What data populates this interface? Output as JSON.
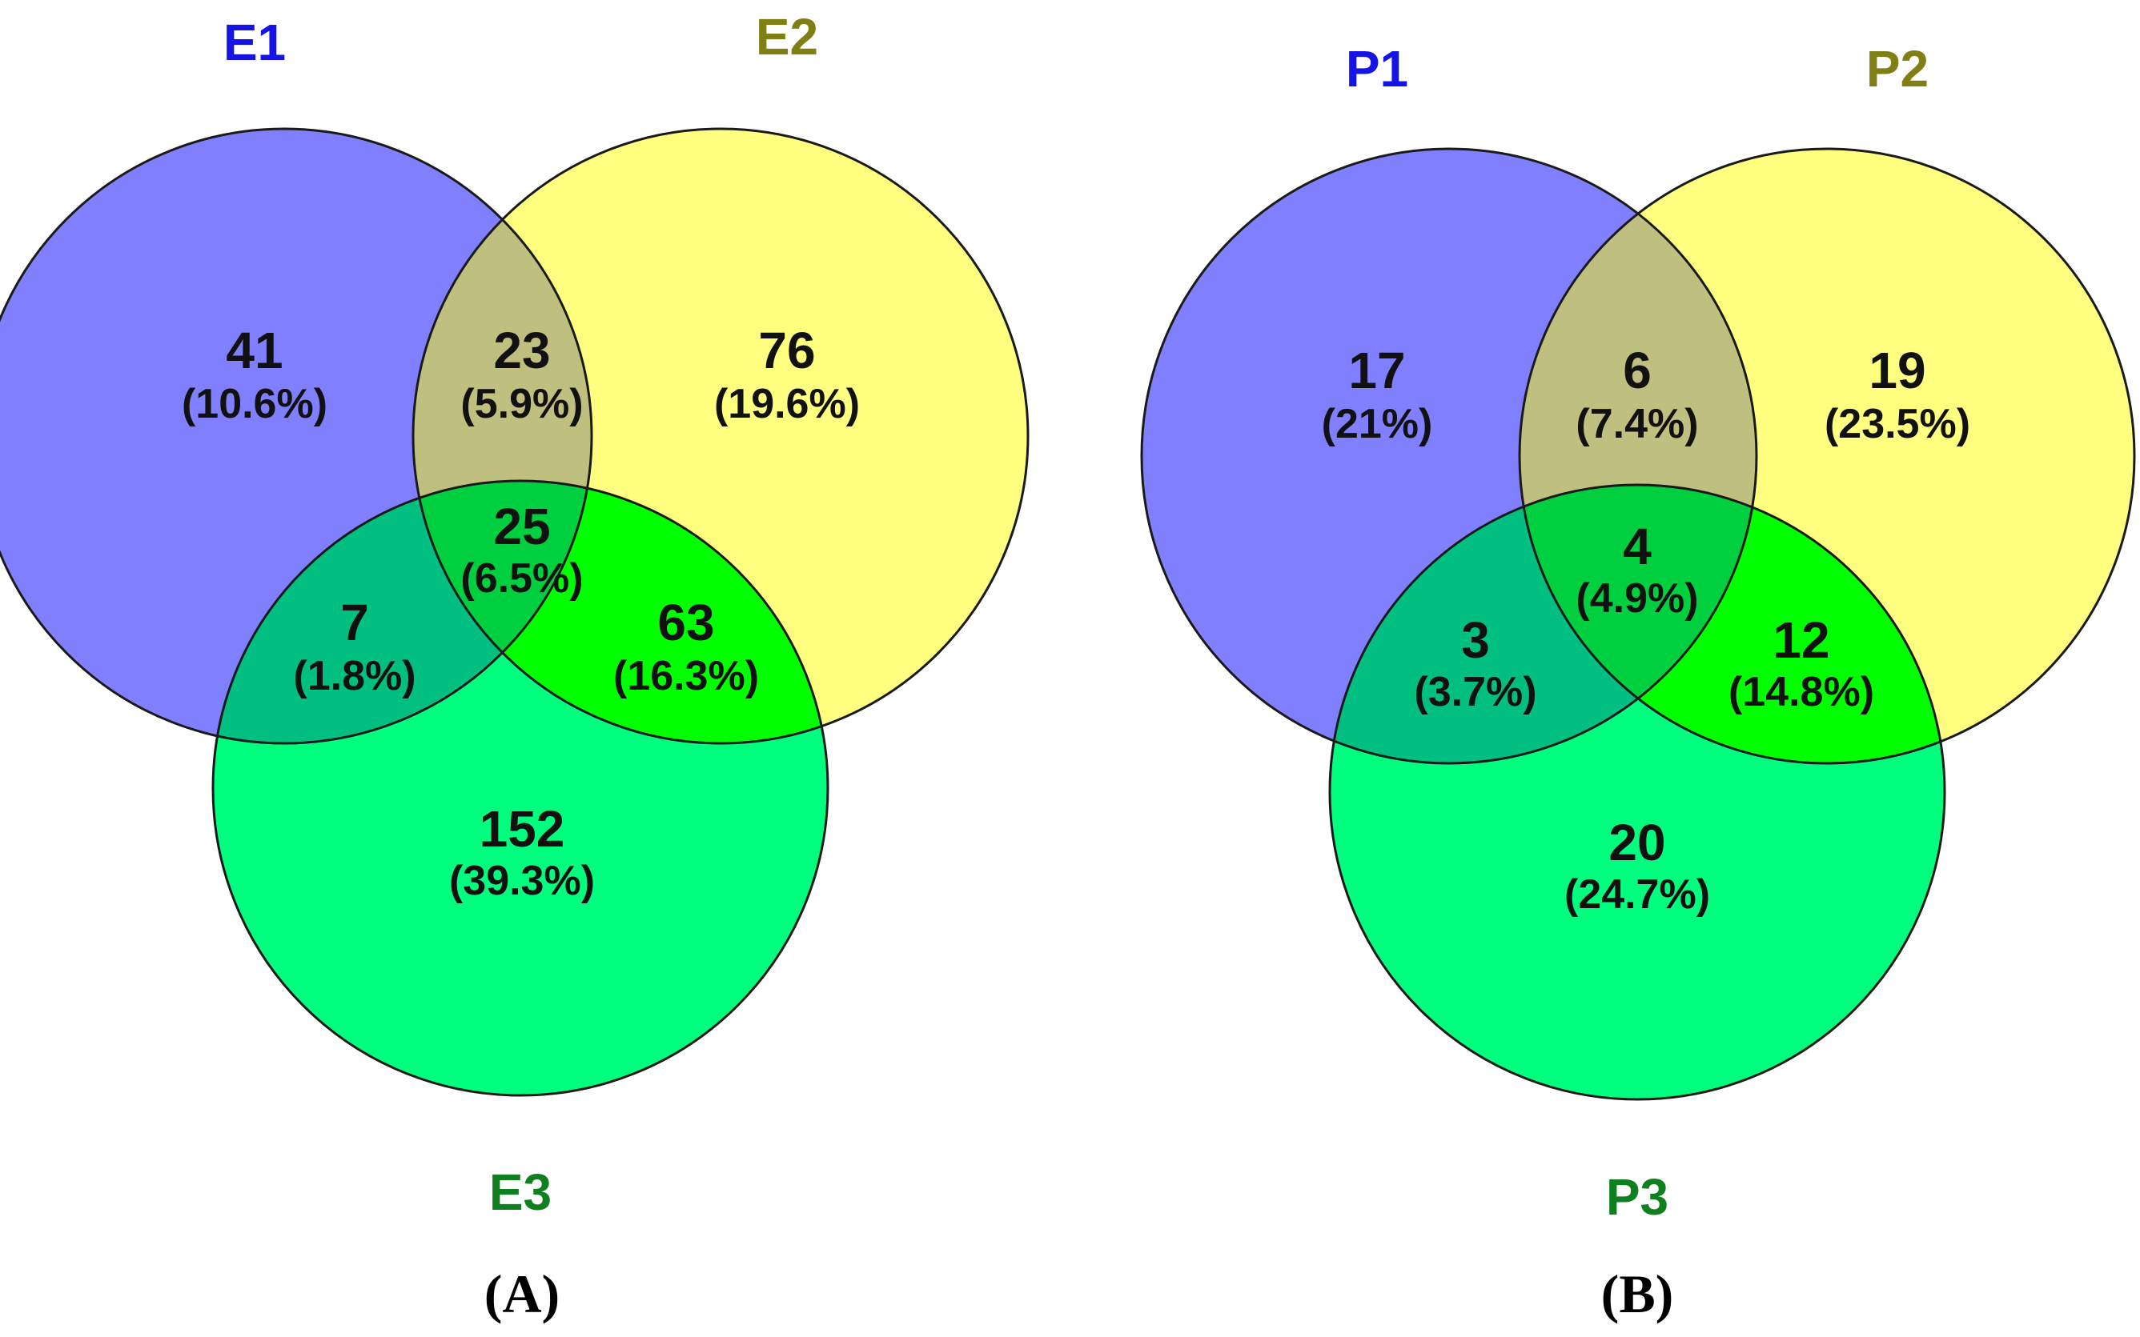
{
  "colors": {
    "set1": "#8080ff",
    "set2": "#ffff80",
    "set3": "#00ff7f",
    "set1_label": "#1414e6",
    "set2_label": "#7f7f14",
    "set3_label": "#0f7f1f",
    "outline": "#1a1a1a"
  },
  "panels": [
    {
      "panel_label": "(A)",
      "sets": [
        {
          "name": "E1"
        },
        {
          "name": "E2"
        },
        {
          "name": "E3"
        }
      ],
      "regions": {
        "only1": {
          "count": "41",
          "percent": "(10.6%)"
        },
        "only2": {
          "count": "76",
          "percent": "(19.6%)"
        },
        "only3": {
          "count": "152",
          "percent": "(39.3%)"
        },
        "r12": {
          "count": "23",
          "percent": "(5.9%)"
        },
        "r13": {
          "count": "7",
          "percent": "(1.8%)"
        },
        "r23": {
          "count": "63",
          "percent": "(16.3%)"
        },
        "r123": {
          "count": "25",
          "percent": "(6.5%)"
        }
      }
    },
    {
      "panel_label": "(B)",
      "sets": [
        {
          "name": "P1"
        },
        {
          "name": "P2"
        },
        {
          "name": "P3"
        }
      ],
      "regions": {
        "only1": {
          "count": "17",
          "percent": "(21%)"
        },
        "only2": {
          "count": "19",
          "percent": "(23.5%)"
        },
        "only3": {
          "count": "20",
          "percent": "(24.7%)"
        },
        "r12": {
          "count": "6",
          "percent": "(7.4%)"
        },
        "r13": {
          "count": "3",
          "percent": "(3.7%)"
        },
        "r23": {
          "count": "12",
          "percent": "(14.8%)"
        },
        "r123": {
          "count": "4",
          "percent": "(4.9%)"
        }
      }
    }
  ]
}
